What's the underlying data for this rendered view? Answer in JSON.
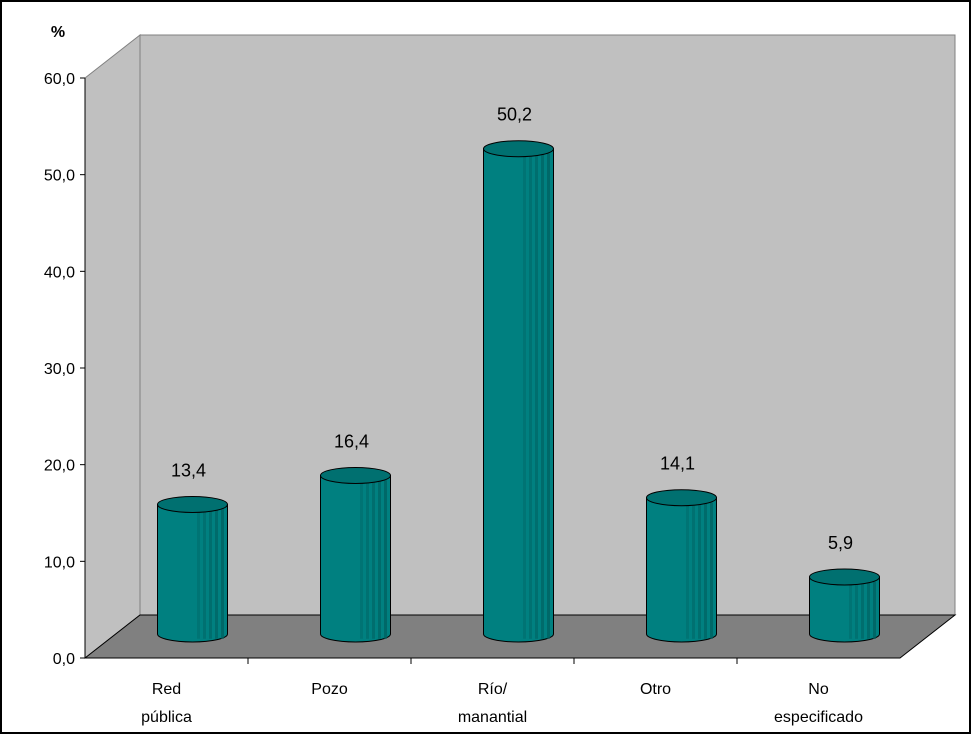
{
  "chart_data": {
    "type": "bar",
    "style": "3d-cylinder",
    "ylabel": "%",
    "categories": [
      "Red\npública",
      "Pozo",
      "Río/\nmanantial",
      "Otro",
      "No\nespecificado"
    ],
    "values": [
      13.4,
      16.4,
      50.2,
      14.1,
      5.9
    ],
    "data_labels": [
      "13,4",
      "16,4",
      "50,2",
      "14,1",
      "5,9"
    ],
    "ylim": [
      0,
      60
    ],
    "yticks": [
      "0,0",
      "10,0",
      "20,0",
      "30,0",
      "40,0",
      "50,0",
      "60,0"
    ],
    "grid": false,
    "legend": "none",
    "colors": {
      "bar_front": "#008080",
      "bar_dark": "#006060",
      "bar_top": "#007070",
      "back_wall": "#c0c0c0",
      "floor": "#808080",
      "axis": "#000000"
    }
  }
}
